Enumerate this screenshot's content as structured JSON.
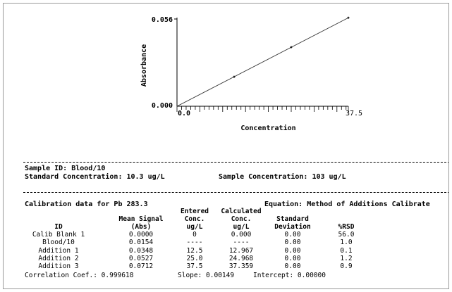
{
  "chart_data": {
    "type": "scatter",
    "xlabel": "Concentration",
    "ylabel": "Absorbance",
    "xlim": [
      0,
      37.5
    ],
    "ylim": [
      0,
      0.056
    ],
    "x_tick_labels": [
      "0.0",
      "37.5"
    ],
    "y_tick_labels": [
      "0.056",
      "0.000"
    ],
    "points": [
      {
        "x": 12.5,
        "y": 0.0186
      },
      {
        "x": 25.0,
        "y": 0.0373
      },
      {
        "x": 37.5,
        "y": 0.0559
      }
    ],
    "fit_line": {
      "slope": 0.00149,
      "intercept": 0.0
    }
  },
  "sample": {
    "id_label": "Sample ID: Blood/10",
    "standard_conc_label": "Standard Concentration: 10.3 ug/L",
    "sample_conc_label": "Sample Concentration: 103 ug/L"
  },
  "calibration": {
    "title": "Calibration data for Pb 283.3",
    "equation": "Equation: Method of Additions Calibrate",
    "headers": {
      "id": [
        "",
        "",
        "ID"
      ],
      "mean_signal": [
        "",
        "Mean Signal",
        "(Abs)"
      ],
      "entered_conc": [
        "Entered",
        "Conc.",
        "ug/L"
      ],
      "calc_conc": [
        "Calculated",
        "Conc.",
        "ug/L"
      ],
      "std_dev": [
        "",
        "Standard",
        "Deviation"
      ],
      "rsd": [
        "",
        "",
        "%RSD"
      ]
    },
    "rows": [
      {
        "id": "Calib Blank 1",
        "mean": "0.0000",
        "entered": "0",
        "calc": "0.000",
        "std": "0.00",
        "rsd": "56.0"
      },
      {
        "id": "Blood/10",
        "mean": "0.0154",
        "entered": "----",
        "calc": "----",
        "std": "0.00",
        "rsd": "1.0"
      },
      {
        "id": "Addition 1",
        "mean": "0.0348",
        "entered": "12.5",
        "calc": "12.967",
        "std": "0.00",
        "rsd": "0.1"
      },
      {
        "id": "Addition 2",
        "mean": "0.0527",
        "entered": "25.0",
        "calc": "24.968",
        "std": "0.00",
        "rsd": "1.2"
      },
      {
        "id": "Addition 3",
        "mean": "0.0712",
        "entered": "37.5",
        "calc": "37.359",
        "std": "0.00",
        "rsd": "0.9"
      }
    ],
    "footer": {
      "correlation": "Correlation Coef.: 0.999618",
      "slope": "Slope: 0.00149",
      "intercept": "Intercept: 0.00000"
    }
  }
}
